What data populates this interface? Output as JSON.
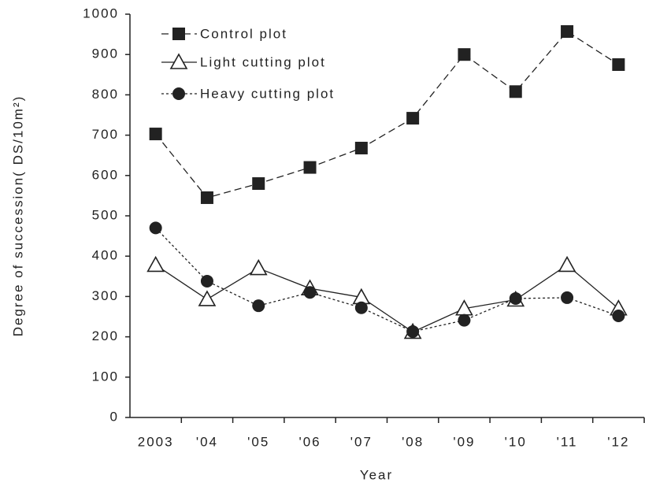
{
  "chart_data": {
    "type": "line",
    "xlabel": "Year",
    "ylabel": "Degree of succession( DS/10m²)",
    "categories": [
      "2003",
      "'04",
      "'05",
      "'06",
      "'07",
      "'08",
      "'09",
      "'10",
      "'11",
      "'12"
    ],
    "series": [
      {
        "name": "Control plot",
        "color": "#222222",
        "marker": "square",
        "line_style": "dashed",
        "values": [
          703,
          545,
          580,
          620,
          668,
          742,
          900,
          808,
          957,
          875
        ]
      },
      {
        "name": "Light cutting plot",
        "color": "#222222",
        "marker": "triangle",
        "line_style": "solid",
        "values": [
          378,
          293,
          370,
          320,
          298,
          212,
          270,
          292,
          378,
          270
        ]
      },
      {
        "name": "Heavy cutting plot",
        "color": "#222222",
        "marker": "circle",
        "line_style": "dotted",
        "values": [
          470,
          338,
          277,
          310,
          272,
          213,
          241,
          295,
          297,
          252
        ]
      }
    ],
    "ylim": [
      0,
      1000
    ],
    "yticks": [
      0,
      100,
      200,
      300,
      400,
      500,
      600,
      700,
      800,
      900,
      1000
    ],
    "legend": "upper left",
    "grid": false
  }
}
